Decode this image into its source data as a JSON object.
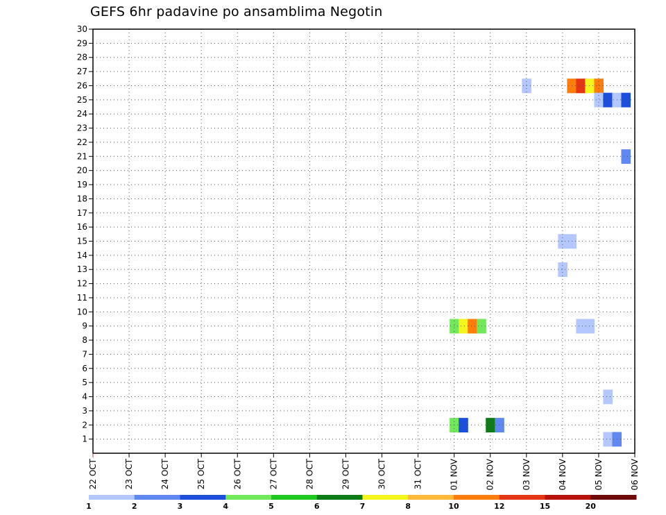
{
  "chart_data": {
    "type": "heatmap",
    "title": "GEFS 6hr padavine po ansamblima Negotin",
    "xlabel": "",
    "ylabel": "",
    "x_ticks": [
      "22 OCT",
      "23 OCT",
      "24 OCT",
      "25 OCT",
      "26 OCT",
      "27 OCT",
      "28 OCT",
      "29 OCT",
      "30 OCT",
      "31 OCT",
      "01 NOV",
      "02 NOV",
      "03 NOV",
      "04 NOV",
      "05 NOV",
      "06 NOV"
    ],
    "y_ticks": [
      1,
      2,
      3,
      4,
      5,
      6,
      7,
      8,
      9,
      10,
      11,
      12,
      13,
      14,
      15,
      16,
      17,
      18,
      19,
      20,
      21,
      22,
      23,
      24,
      25,
      26,
      27,
      28,
      29,
      30
    ],
    "xlim": [
      0,
      15
    ],
    "ylim": [
      0,
      30
    ],
    "grid": true,
    "colorbar": {
      "labels": [
        "1",
        "2",
        "3",
        "4",
        "5",
        "6",
        "7",
        "8",
        "10",
        "12",
        "15",
        "20"
      ],
      "colors": [
        "#b4c7ff",
        "#5f88f0",
        "#1d4fdc",
        "#70e85a",
        "#1ec81e",
        "#0e7c16",
        "#f5f51e",
        "#ffba3c",
        "#ff7d0a",
        "#e43614",
        "#b8140c",
        "#6e0a0a"
      ]
    },
    "cells": [
      {
        "day": 10.0,
        "member": 2,
        "level": 4
      },
      {
        "day": 10.25,
        "member": 2,
        "level": 3
      },
      {
        "day": 11.0,
        "member": 2,
        "level": 6
      },
      {
        "day": 11.25,
        "member": 2,
        "level": 2
      },
      {
        "day": 10.0,
        "member": 9,
        "level": 4
      },
      {
        "day": 10.25,
        "member": 9,
        "level": 7
      },
      {
        "day": 10.5,
        "member": 9,
        "level": 9
      },
      {
        "day": 10.75,
        "member": 9,
        "level": 4
      },
      {
        "day": 12.0,
        "member": 26,
        "level": 1
      },
      {
        "day": 13.0,
        "member": 15,
        "level": 1
      },
      {
        "day": 13.25,
        "member": 15,
        "level": 1
      },
      {
        "day": 13.0,
        "member": 13,
        "level": 1
      },
      {
        "day": 13.5,
        "member": 9,
        "level": 1
      },
      {
        "day": 13.75,
        "member": 9,
        "level": 1
      },
      {
        "day": 13.25,
        "member": 26,
        "level": 9
      },
      {
        "day": 13.5,
        "member": 26,
        "level": 10
      },
      {
        "day": 13.75,
        "member": 26,
        "level": 7
      },
      {
        "day": 14.0,
        "member": 26,
        "level": 9
      },
      {
        "day": 14.0,
        "member": 25,
        "level": 1
      },
      {
        "day": 14.25,
        "member": 25,
        "level": 3
      },
      {
        "day": 14.5,
        "member": 25,
        "level": 1
      },
      {
        "day": 14.75,
        "member": 25,
        "level": 3
      },
      {
        "day": 14.75,
        "member": 21,
        "level": 2
      },
      {
        "day": 14.25,
        "member": 4,
        "level": 1
      },
      {
        "day": 14.25,
        "member": 1,
        "level": 1
      },
      {
        "day": 14.5,
        "member": 1,
        "level": 2
      }
    ]
  }
}
